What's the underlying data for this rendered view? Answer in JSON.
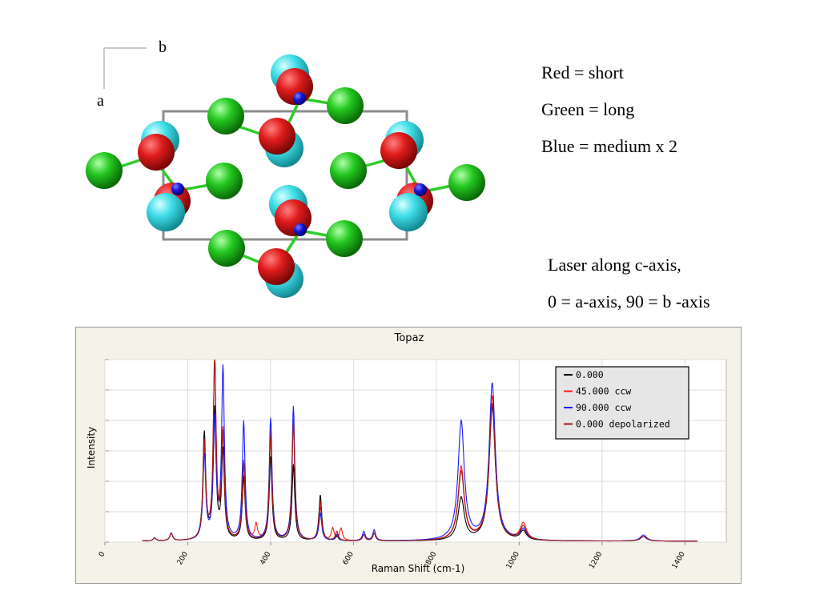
{
  "structure": {
    "axis_labels": {
      "b": "b",
      "a": "a"
    }
  },
  "notes": {
    "lines": [
      "Red = short",
      "Green = long",
      "Blue = medium x 2"
    ],
    "laser": [
      "Laser along c-axis,",
      "0 = a-axis, 90 = b -axis"
    ]
  },
  "colors": {
    "oxygen_red": "#d81818",
    "oxygen_cyan": "#3cdce6",
    "atom_green": "#22c01e",
    "atom_blue": "#1010d0",
    "series_black": "#000000",
    "series_red": "#ff1a1a",
    "series_blue": "#1a1aff",
    "series_darkred": "#a01818"
  },
  "chart_data": {
    "type": "line",
    "title": "Topaz",
    "xlabel": "Raman Shift (cm-1)",
    "ylabel": "Intensity",
    "xlim": [
      0,
      1500
    ],
    "ylim": [
      0,
      120
    ],
    "xticks": [
      "0",
      "200",
      "400",
      "600",
      "800",
      "1000",
      "1200",
      "1400"
    ],
    "grid": true,
    "legend_position": "top-right",
    "series": [
      {
        "name": "0.000",
        "color": "#000000",
        "peaks": [
          [
            120,
            2
          ],
          [
            160,
            5
          ],
          [
            240,
            70
          ],
          [
            265,
            85
          ],
          [
            285,
            58
          ],
          [
            335,
            42
          ],
          [
            400,
            55
          ],
          [
            455,
            50
          ],
          [
            520,
            30
          ],
          [
            560,
            3
          ],
          [
            625,
            4
          ],
          [
            650,
            5
          ],
          [
            860,
            28
          ],
          [
            935,
            88
          ],
          [
            1010,
            6
          ],
          [
            1300,
            3
          ]
        ]
      },
      {
        "name": "45.000 ccw",
        "color": "#ff1a1a",
        "peaks": [
          [
            120,
            2
          ],
          [
            160,
            5
          ],
          [
            240,
            60
          ],
          [
            265,
            120
          ],
          [
            285,
            70
          ],
          [
            335,
            52
          ],
          [
            365,
            10
          ],
          [
            400,
            72
          ],
          [
            455,
            80
          ],
          [
            520,
            22
          ],
          [
            550,
            8
          ],
          [
            570,
            8
          ],
          [
            625,
            4
          ],
          [
            650,
            5
          ],
          [
            860,
            48
          ],
          [
            935,
            95
          ],
          [
            1010,
            11
          ],
          [
            1300,
            3
          ]
        ]
      },
      {
        "name": "90.000 ccw",
        "color": "#1a1aff",
        "peaks": [
          [
            120,
            2
          ],
          [
            160,
            5
          ],
          [
            240,
            55
          ],
          [
            265,
            78
          ],
          [
            285,
            112
          ],
          [
            335,
            78
          ],
          [
            400,
            80
          ],
          [
            455,
            88
          ],
          [
            520,
            18
          ],
          [
            560,
            4
          ],
          [
            625,
            6
          ],
          [
            650,
            7
          ],
          [
            860,
            78
          ],
          [
            935,
            103
          ],
          [
            1010,
            7
          ],
          [
            1300,
            4
          ]
        ]
      },
      {
        "name": "0.000 depolarized",
        "color": "#a01818",
        "peaks": [
          [
            120,
            2
          ],
          [
            160,
            5
          ],
          [
            240,
            64
          ],
          [
            265,
            118
          ],
          [
            285,
            68
          ],
          [
            335,
            50
          ],
          [
            400,
            68
          ],
          [
            455,
            78
          ],
          [
            520,
            26
          ],
          [
            560,
            6
          ],
          [
            625,
            4
          ],
          [
            650,
            5
          ],
          [
            860,
            45
          ],
          [
            935,
            90
          ],
          [
            1010,
            9
          ],
          [
            1300,
            3
          ]
        ]
      }
    ]
  }
}
